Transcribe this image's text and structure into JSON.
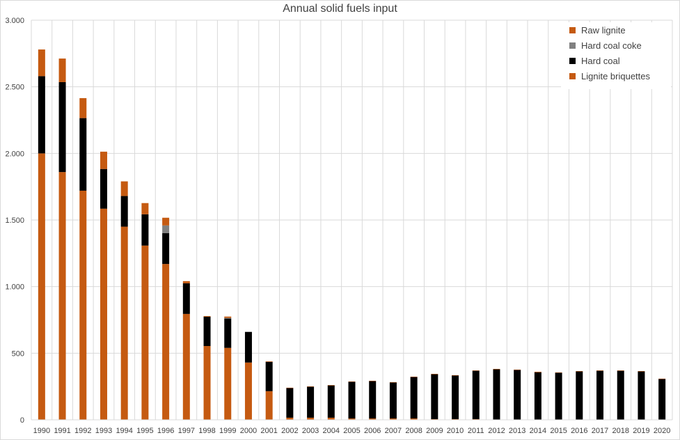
{
  "chart_data": {
    "type": "bar",
    "stacked": true,
    "title": "Annual solid fuels input",
    "xlabel": "",
    "ylabel": "",
    "ylim": [
      0,
      3000
    ],
    "yticks": [
      0,
      500,
      1000,
      1500,
      2000,
      2500,
      3000
    ],
    "ytick_labels": [
      "0",
      "500",
      "1.000",
      "1.500",
      "2.000",
      "2.500",
      "3.000"
    ],
    "grid": true,
    "legend_position": "top-right",
    "categories": [
      "1990",
      "1991",
      "1992",
      "1993",
      "1994",
      "1995",
      "1996",
      "1997",
      "1998",
      "1999",
      "2000",
      "2001",
      "2002",
      "2003",
      "2004",
      "2005",
      "2006",
      "2007",
      "2008",
      "2009",
      "2010",
      "2011",
      "2012",
      "2013",
      "2014",
      "2015",
      "2016",
      "2017",
      "2018",
      "2019",
      "2020"
    ],
    "series": [
      {
        "name": "Lignite briquettes",
        "color": "#C55A11",
        "values": [
          2000,
          1860,
          1720,
          1585,
          1450,
          1308,
          1170,
          795,
          554,
          540,
          430,
          215,
          16,
          16,
          16,
          10,
          10,
          10,
          10,
          5,
          5,
          5,
          0,
          0,
          0,
          0,
          0,
          0,
          0,
          0,
          0
        ]
      },
      {
        "name": "Hard coal",
        "color": "#000000",
        "values": [
          580,
          675,
          545,
          298,
          230,
          235,
          232,
          230,
          220,
          220,
          230,
          220,
          222,
          232,
          242,
          275,
          280,
          270,
          311,
          337,
          327,
          363,
          379,
          374,
          357,
          353,
          363,
          368,
          368,
          363,
          306
        ]
      },
      {
        "name": "Hard coal coke",
        "color": "#808080",
        "values": [
          0,
          0,
          0,
          0,
          0,
          0,
          57,
          0,
          0,
          5,
          0,
          0,
          0,
          0,
          0,
          0,
          0,
          0,
          0,
          0,
          0,
          0,
          0,
          0,
          0,
          0,
          0,
          0,
          0,
          0,
          0
        ]
      },
      {
        "name": "Raw lignite",
        "color": "#C55A11",
        "values": [
          200,
          177,
          150,
          130,
          110,
          84,
          58,
          16,
          5,
          10,
          0,
          4,
          3,
          3,
          3,
          3,
          3,
          3,
          3,
          3,
          3,
          3,
          3,
          3,
          4,
          3,
          3,
          3,
          3,
          3,
          3
        ]
      }
    ],
    "legend_order": [
      "Raw lignite",
      "Hard coal coke",
      "Hard coal",
      "Lignite briquettes"
    ]
  }
}
